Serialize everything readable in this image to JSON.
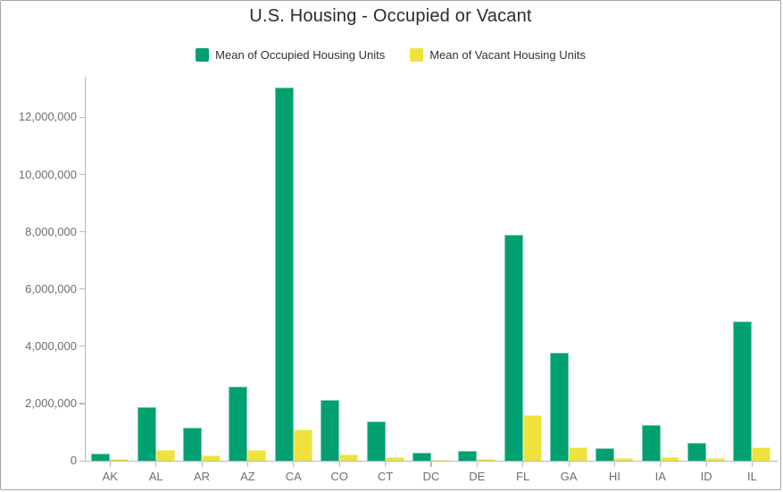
{
  "title": "U.S. Housing - Occupied or Vacant",
  "legend": [
    {
      "label": "Mean of Occupied Housing Units",
      "color": "#00A071"
    },
    {
      "label": "Mean of Vacant Housing Units",
      "color": "#EFE23D"
    }
  ],
  "chart_data": {
    "type": "bar",
    "title": "U.S. Housing - Occupied or Vacant",
    "xlabel": "",
    "ylabel": "",
    "grid": false,
    "legend_position": "top",
    "ylim": [
      0,
      13320000
    ],
    "yticks": [
      0,
      2000000,
      4000000,
      6000000,
      8000000,
      10000000,
      12000000
    ],
    "ytick_labels": [
      "0",
      "2,000,000",
      "4,000,000",
      "6,000,000",
      "8,000,000",
      "10,000,000",
      "12,000,000"
    ],
    "categories": [
      "AK",
      "AL",
      "AR",
      "AZ",
      "CA",
      "CO",
      "CT",
      "DC",
      "DE",
      "FL",
      "GA",
      "HI",
      "IA",
      "ID",
      "IL"
    ],
    "series": [
      {
        "name": "Mean of Occupied Housing Units",
        "color": "#00A071",
        "values": [
          250000,
          1860000,
          1140000,
          2600000,
          13050000,
          2130000,
          1360000,
          280000,
          345000,
          7910000,
          3790000,
          450000,
          1250000,
          630000,
          4860000
        ]
      },
      {
        "name": "Mean of Vacant Housing Units",
        "color": "#EFE23D",
        "values": [
          60000,
          360000,
          200000,
          380000,
          1090000,
          210000,
          120000,
          30000,
          60000,
          1590000,
          470000,
          80000,
          130000,
          80000,
          460000
        ]
      }
    ]
  }
}
